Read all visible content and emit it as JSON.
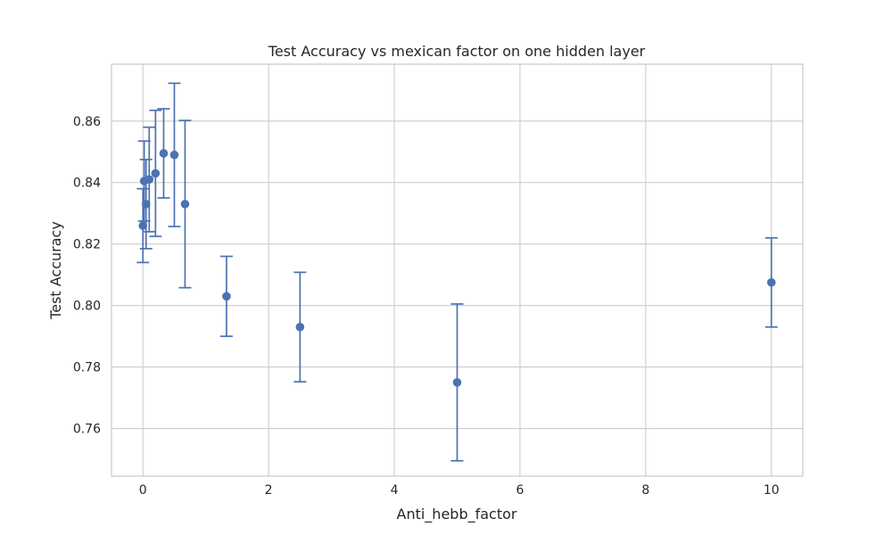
{
  "chart_data": {
    "type": "scatter",
    "title": "Test Accuracy vs mexican factor on one hidden layer",
    "xlabel": "Anti_hebb_factor",
    "ylabel": "Test Accuracy",
    "xlim": [
      -0.5,
      10.5
    ],
    "ylim": [
      0.7445,
      0.8785
    ],
    "x_ticks": [
      0,
      2,
      4,
      6,
      8,
      10
    ],
    "x_tick_labels": [
      "0",
      "2",
      "4",
      "6",
      "8",
      "10"
    ],
    "y_ticks": [
      0.76,
      0.78,
      0.8,
      0.82,
      0.84,
      0.86
    ],
    "y_tick_labels": [
      "0.76",
      "0.78",
      "0.80",
      "0.82",
      "0.84",
      "0.86"
    ],
    "grid": true,
    "color": "#4c72b0",
    "points": [
      {
        "x": 0.0,
        "y": 0.826,
        "err": 0.012
      },
      {
        "x": 0.02,
        "y": 0.8405,
        "err": 0.013
      },
      {
        "x": 0.05,
        "y": 0.833,
        "err": 0.0145
      },
      {
        "x": 0.1,
        "y": 0.841,
        "err": 0.017
      },
      {
        "x": 0.2,
        "y": 0.843,
        "err": 0.0205
      },
      {
        "x": 0.33,
        "y": 0.8495,
        "err": 0.0145
      },
      {
        "x": 0.5,
        "y": 0.849,
        "err": 0.0233
      },
      {
        "x": 0.67,
        "y": 0.833,
        "err": 0.0272
      },
      {
        "x": 1.33,
        "y": 0.803,
        "err": 0.013
      },
      {
        "x": 2.5,
        "y": 0.793,
        "err": 0.0178
      },
      {
        "x": 5.0,
        "y": 0.775,
        "err": 0.0255
      },
      {
        "x": 10.0,
        "y": 0.8075,
        "err": 0.0145
      }
    ]
  }
}
